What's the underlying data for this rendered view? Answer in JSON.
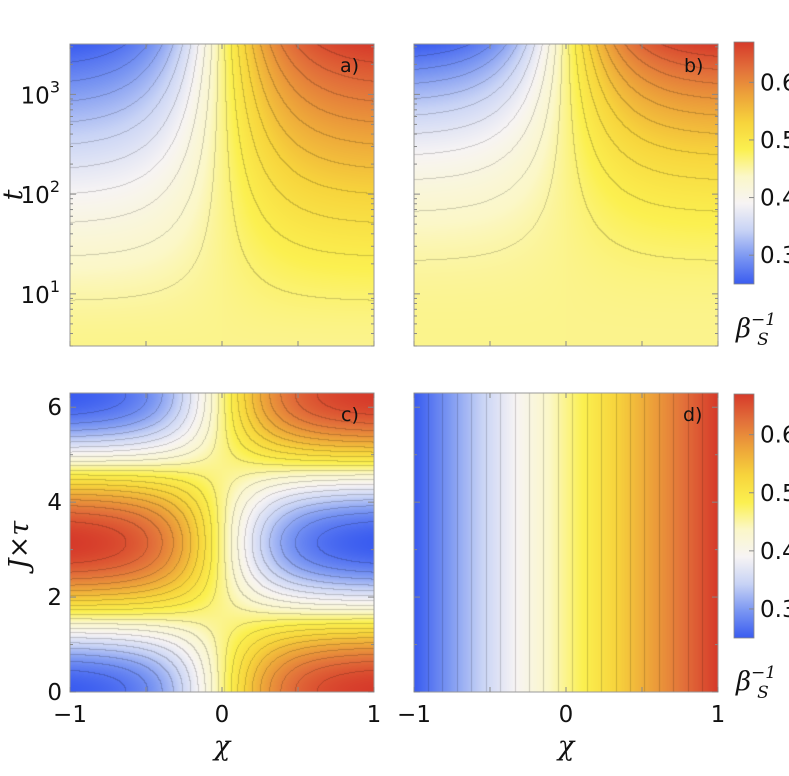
{
  "chart_data": [
    {
      "type": "heatmap",
      "panel_label": "a)",
      "xlabel": "",
      "ylabel": "t",
      "xlim": [
        -1,
        1
      ],
      "ylim": [
        3,
        3200
      ],
      "y_scale": "log",
      "x_ticks": [],
      "y_ticks": [
        {
          "value": 10,
          "base": "10",
          "exp": "1"
        },
        {
          "value": 100,
          "base": "10",
          "exp": "2"
        },
        {
          "value": 1000,
          "base": "10",
          "exp": "3"
        }
      ],
      "z_at_corners": {
        "left_top": 0.25,
        "right_top": 0.67,
        "center": 0.46
      },
      "contours": true
    },
    {
      "type": "heatmap",
      "panel_label": "b)",
      "xlabel": "",
      "ylabel": "",
      "xlim": [
        -1,
        1
      ],
      "ylim": [
        3,
        3200
      ],
      "y_scale": "log",
      "x_ticks": [],
      "y_ticks": [],
      "z_at_corners": {
        "left_top": 0.25,
        "right_top": 0.67,
        "center": 0.46
      },
      "contours": true
    },
    {
      "type": "heatmap",
      "panel_label": "c)",
      "xlabel": "χ",
      "ylabel": "J×τ",
      "xlim": [
        -1,
        1
      ],
      "ylim": [
        0,
        6.3
      ],
      "y_scale": "linear",
      "x_ticks": [
        "−1",
        "0",
        "1"
      ],
      "y_ticks": [
        "0",
        "2",
        "4",
        "6"
      ],
      "z_range": [
        0.25,
        0.67
      ],
      "contours": true
    },
    {
      "type": "heatmap",
      "panel_label": "d)",
      "xlabel": "χ",
      "ylabel": "",
      "xlim": [
        -1,
        1
      ],
      "ylim": [
        0,
        6.3
      ],
      "y_scale": "linear",
      "x_ticks": [
        "−1",
        "0",
        "1"
      ],
      "y_ticks": [],
      "z_range": [
        0.25,
        0.67
      ],
      "contours": true
    }
  ],
  "colorbars": [
    {
      "range": [
        0.25,
        0.67
      ],
      "ticks": [
        "0.3",
        "0.4",
        "0.5",
        "0.6"
      ],
      "tick_values": [
        0.3,
        0.4,
        0.5,
        0.6
      ],
      "label_base": "β",
      "label_sub": "S",
      "label_sup": "−1"
    },
    {
      "range": [
        0.25,
        0.67
      ],
      "ticks": [
        "0.3",
        "0.4",
        "0.5",
        "0.6"
      ],
      "tick_values": [
        0.3,
        0.4,
        0.5,
        0.6
      ],
      "label_base": "β",
      "label_sub": "S",
      "label_sup": "−1"
    }
  ],
  "colormap": [
    "#3a5cf0",
    "#7a96f2",
    "#c8d3f5",
    "#f7f4f4",
    "#fbf7c8",
    "#fbf050",
    "#f7d43c",
    "#eda43a",
    "#e2703a",
    "#d63a2a"
  ]
}
